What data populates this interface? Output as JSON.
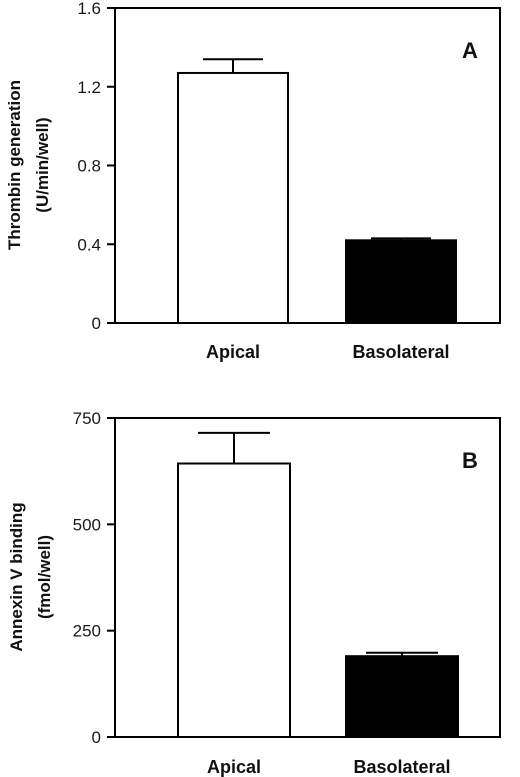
{
  "chart_data": [
    {
      "type": "bar",
      "panel_label": "A",
      "ylabel_lines": [
        "Thrombin generation",
        "(U/min/well)"
      ],
      "xlabel": "",
      "categories": [
        "Apical",
        "Basolateral"
      ],
      "values": [
        1.27,
        0.42
      ],
      "errors": [
        0.07,
        0.01
      ],
      "bar_fills": [
        "#ffffff",
        "#000000"
      ],
      "ylim": [
        0,
        1.6
      ],
      "yticks": [
        0,
        0.4,
        0.8,
        1.2,
        1.6
      ],
      "ytick_labels": [
        "0",
        "0.4",
        "0.8",
        "1.2",
        "1.6"
      ],
      "grid": false
    },
    {
      "type": "bar",
      "panel_label": "B",
      "ylabel_lines": [
        "Annexin V binding",
        "(fmol/well)"
      ],
      "xlabel": "",
      "categories": [
        "Apical",
        "Basolateral"
      ],
      "values": [
        643,
        190
      ],
      "errors": [
        72,
        8
      ],
      "bar_fills": [
        "#ffffff",
        "#000000"
      ],
      "ylim": [
        0,
        750
      ],
      "yticks": [
        0,
        250,
        500,
        750
      ],
      "ytick_labels": [
        "0",
        "250",
        "500",
        "750"
      ],
      "grid": false
    }
  ]
}
